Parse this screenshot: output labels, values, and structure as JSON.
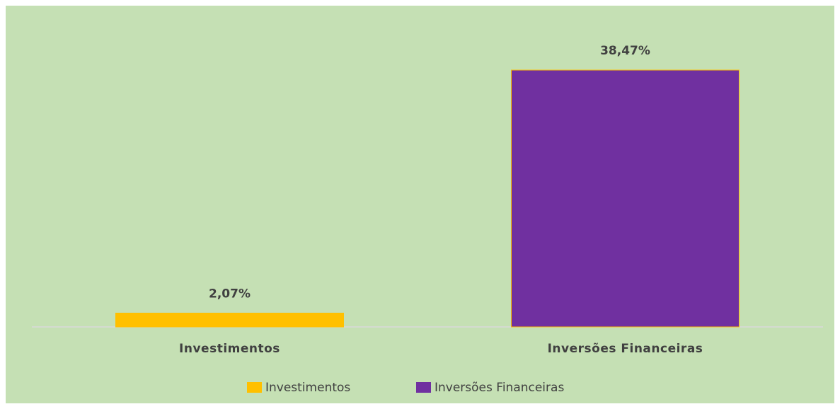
{
  "chart_data": {
    "type": "bar",
    "categories": [
      "Investimentos",
      "Inversões Financeiras"
    ],
    "series": [
      {
        "name": "Investimentos",
        "color": "#ffc000",
        "values": [
          2.07,
          null
        ],
        "value_labels": [
          "2,07%",
          null
        ]
      },
      {
        "name": "Inversões Financeiras",
        "color": "#7030a0",
        "values": [
          null,
          38.47
        ],
        "value_labels": [
          null,
          "38,47%"
        ]
      }
    ],
    "legend": "bottom"
  }
}
